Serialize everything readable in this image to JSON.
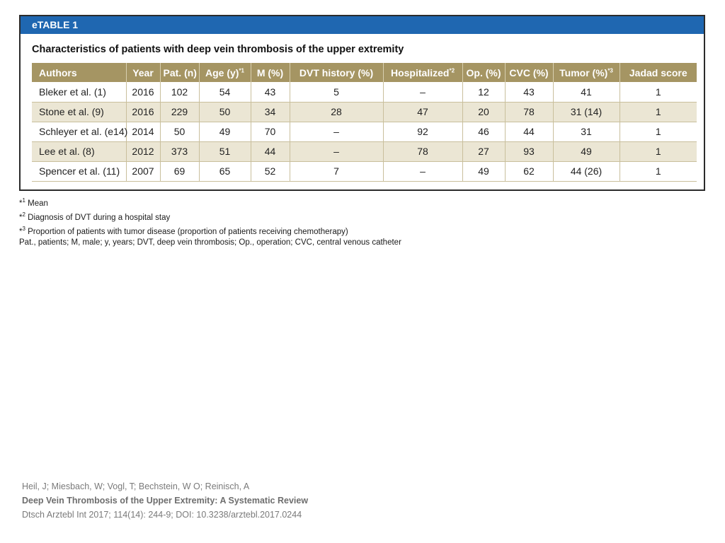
{
  "table": {
    "label": "eTABLE 1",
    "caption": "Characteristics of patients with deep vein thrombosis of the upper extremity",
    "headers": [
      "Authors",
      "Year",
      "Pat. (n)",
      "Age (y)",
      "M (%)",
      "DVT history (%)",
      "Hospitalized",
      "Op. (%)",
      "CVC (%)",
      "Tumor (%)",
      "Jadad score"
    ],
    "header_footnotes": {
      "age": "*1",
      "hospitalized": "*2",
      "tumor": "*3"
    },
    "rows": [
      [
        "Bleker et al. (1)",
        "2016",
        "102",
        "54",
        "43",
        "5",
        "–",
        "12",
        "43",
        "41",
        "1"
      ],
      [
        "Stone et al. (9)",
        "2016",
        "229",
        "50",
        "34",
        "28",
        "47",
        "20",
        "78",
        "31 (14)",
        "1"
      ],
      [
        "Schleyer et al. (e14)",
        "2014",
        "50",
        "49",
        "70",
        "–",
        "92",
        "46",
        "44",
        "31",
        "1"
      ],
      [
        "Lee et al. (8)",
        "2012",
        "373",
        "51",
        "44",
        "–",
        "78",
        "27",
        "93",
        "49",
        "1"
      ],
      [
        "Spencer et al. (11)",
        "2007",
        "69",
        "65",
        "52",
        "7",
        "–",
        "49",
        "62",
        "44 (26)",
        "1"
      ]
    ]
  },
  "footnotes": {
    "n1": {
      "mark": "*",
      "sup": "1",
      "text": " Mean"
    },
    "n2": {
      "mark": "*",
      "sup": "2",
      "text": " Diagnosis of DVT during a hospital stay"
    },
    "n3": {
      "mark": "*",
      "sup": "3",
      "text": " Proportion of patients with tumor disease (proportion of patients receiving chemotherapy)"
    },
    "abbrev": "Pat., patients; M, male; y, years; DVT, deep vein thrombosis; Op., operation; CVC, central venous catheter"
  },
  "citation": {
    "authors": "Heil, J; Miesbach, W; Vogl, T; Bechstein, W O; Reinisch, A",
    "title": "Deep Vein Thrombosis of the Upper Extremity: A Systematic Review",
    "source": "Dtsch Arztebl Int 2017; 114(14): 244-9; DOI: 10.3238/arztebl.2017.0244"
  },
  "colors": {
    "bar": "#1f67b1",
    "header": "#a59563",
    "alt_row": "#ebe6d4"
  }
}
